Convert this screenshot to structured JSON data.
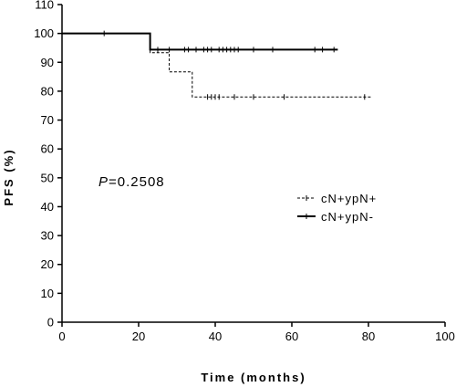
{
  "chart_data": {
    "type": "line",
    "xlabel": "Time (months)",
    "ylabel": "PFS (%)",
    "xlim": [
      0,
      100
    ],
    "ylim": [
      0,
      110
    ],
    "xticks": [
      0,
      20,
      40,
      60,
      80,
      100
    ],
    "yticks": [
      0,
      10,
      20,
      30,
      40,
      50,
      60,
      70,
      80,
      90,
      100,
      110
    ],
    "grid": false,
    "legend_position": "right",
    "annotation": {
      "italic": "P",
      "text": "=0.2508"
    },
    "series": [
      {
        "name": "cN+ypN+",
        "style": "dashed",
        "steps": [
          [
            0,
            100
          ],
          [
            23,
            100
          ],
          [
            23,
            93.3
          ],
          [
            28,
            93.3
          ],
          [
            28,
            86.7
          ],
          [
            34,
            86.7
          ],
          [
            34,
            78
          ],
          [
            81,
            78
          ]
        ],
        "censor_x": [
          11,
          38,
          39,
          40,
          41,
          45,
          50,
          58,
          79
        ]
      },
      {
        "name": "cN+ypN-",
        "style": "solid",
        "steps": [
          [
            0,
            100
          ],
          [
            23,
            100
          ],
          [
            23,
            94.4
          ],
          [
            72,
            94.4
          ]
        ],
        "censor_x": [
          25,
          28,
          32,
          33,
          35,
          37,
          38,
          39,
          41,
          42,
          43,
          44,
          45,
          46,
          50,
          55,
          66,
          68,
          71
        ]
      }
    ]
  },
  "colors": {
    "line": "#000000"
  }
}
